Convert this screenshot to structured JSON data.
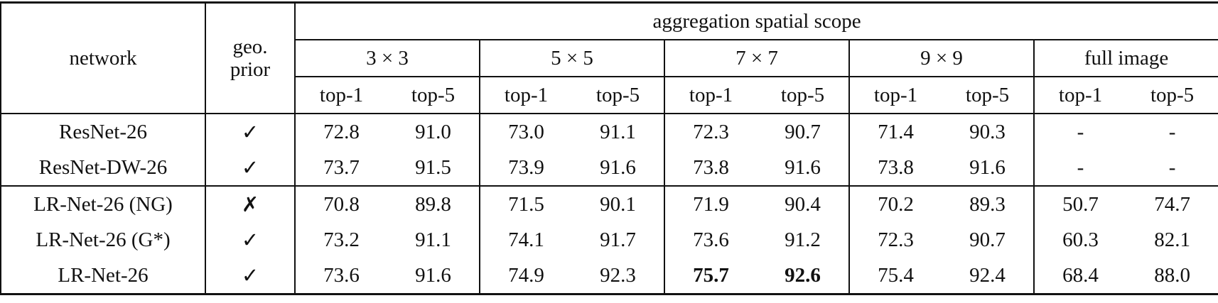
{
  "table": {
    "header": {
      "network": "network",
      "geo_prior": "geo. prior",
      "scope": "aggregation spatial scope",
      "scopes": [
        "3 × 3",
        "5 × 5",
        "7 × 7",
        "9 × 9",
        "full image"
      ],
      "metrics": [
        "top-1",
        "top-5"
      ]
    },
    "rows": [
      {
        "network": "ResNet-26",
        "geo_prior": "✓",
        "values": [
          "72.8",
          "91.0",
          "73.0",
          "91.1",
          "72.3",
          "90.7",
          "71.4",
          "90.3",
          "-",
          "-"
        ]
      },
      {
        "network": "ResNet-DW-26",
        "geo_prior": "✓",
        "values": [
          "73.7",
          "91.5",
          "73.9",
          "91.6",
          "73.8",
          "91.6",
          "73.8",
          "91.6",
          "-",
          "-"
        ]
      },
      {
        "network": "LR-Net-26 (NG)",
        "geo_prior": "✗",
        "values": [
          "70.8",
          "89.8",
          "71.5",
          "90.1",
          "71.9",
          "90.4",
          "70.2",
          "89.3",
          "50.7",
          "74.7"
        ]
      },
      {
        "network": "LR-Net-26 (G*)",
        "geo_prior": "✓",
        "values": [
          "73.2",
          "91.1",
          "74.1",
          "91.7",
          "73.6",
          "91.2",
          "72.3",
          "90.7",
          "60.3",
          "82.1"
        ]
      },
      {
        "network": "LR-Net-26",
        "geo_prior": "✓",
        "values": [
          "73.6",
          "91.6",
          "74.9",
          "92.3",
          "75.7",
          "92.6",
          "75.4",
          "92.4",
          "68.4",
          "88.0"
        ],
        "bold": [
          4,
          5
        ]
      }
    ]
  }
}
